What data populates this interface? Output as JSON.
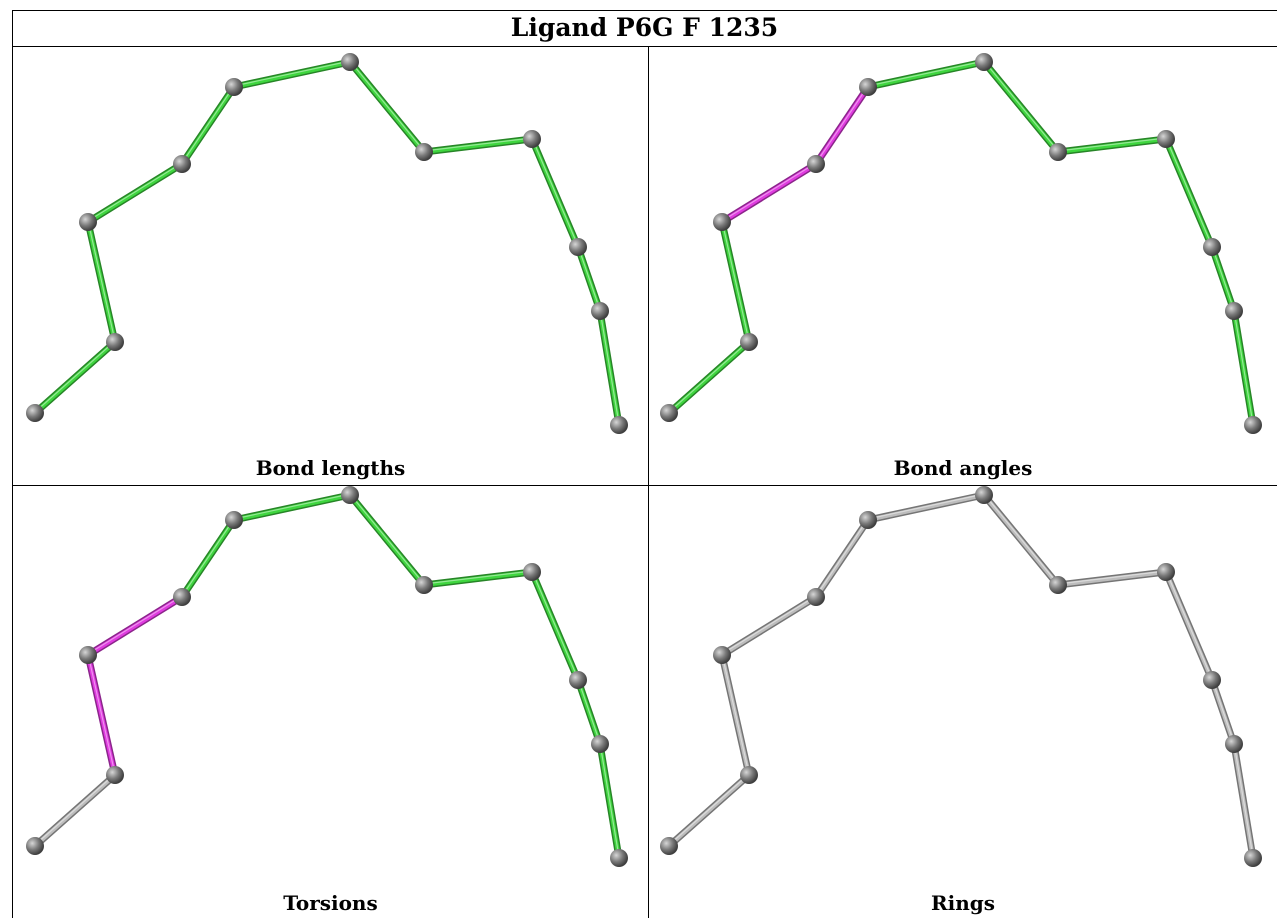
{
  "title": "Ligand P6G F 1235",
  "panels": [
    {
      "caption": "Bond lengths",
      "bond_colors": [
        "green",
        "green",
        "green",
        "green",
        "green",
        "green",
        "green",
        "green",
        "green",
        "green",
        "green",
        "green"
      ]
    },
    {
      "caption": "Bond angles",
      "bond_colors": [
        "green",
        "green",
        "magenta",
        "magenta",
        "green",
        "green",
        "green",
        "green",
        "green",
        "green",
        "green",
        "green"
      ]
    },
    {
      "caption": "Torsions",
      "bond_colors": [
        "grey",
        "magenta",
        "magenta",
        "green",
        "green",
        "green",
        "green",
        "green",
        "green",
        "green",
        "green",
        "grey"
      ]
    },
    {
      "caption": "Rings",
      "bond_colors": [
        "grey",
        "grey",
        "grey",
        "grey",
        "grey",
        "grey",
        "grey",
        "grey",
        "grey",
        "grey",
        "grey",
        "grey"
      ]
    }
  ],
  "colors": {
    "green": "#3fd63f",
    "magenta": "#e03be0",
    "grey": "#bdbdbd",
    "atom": "#7a7a7a"
  }
}
